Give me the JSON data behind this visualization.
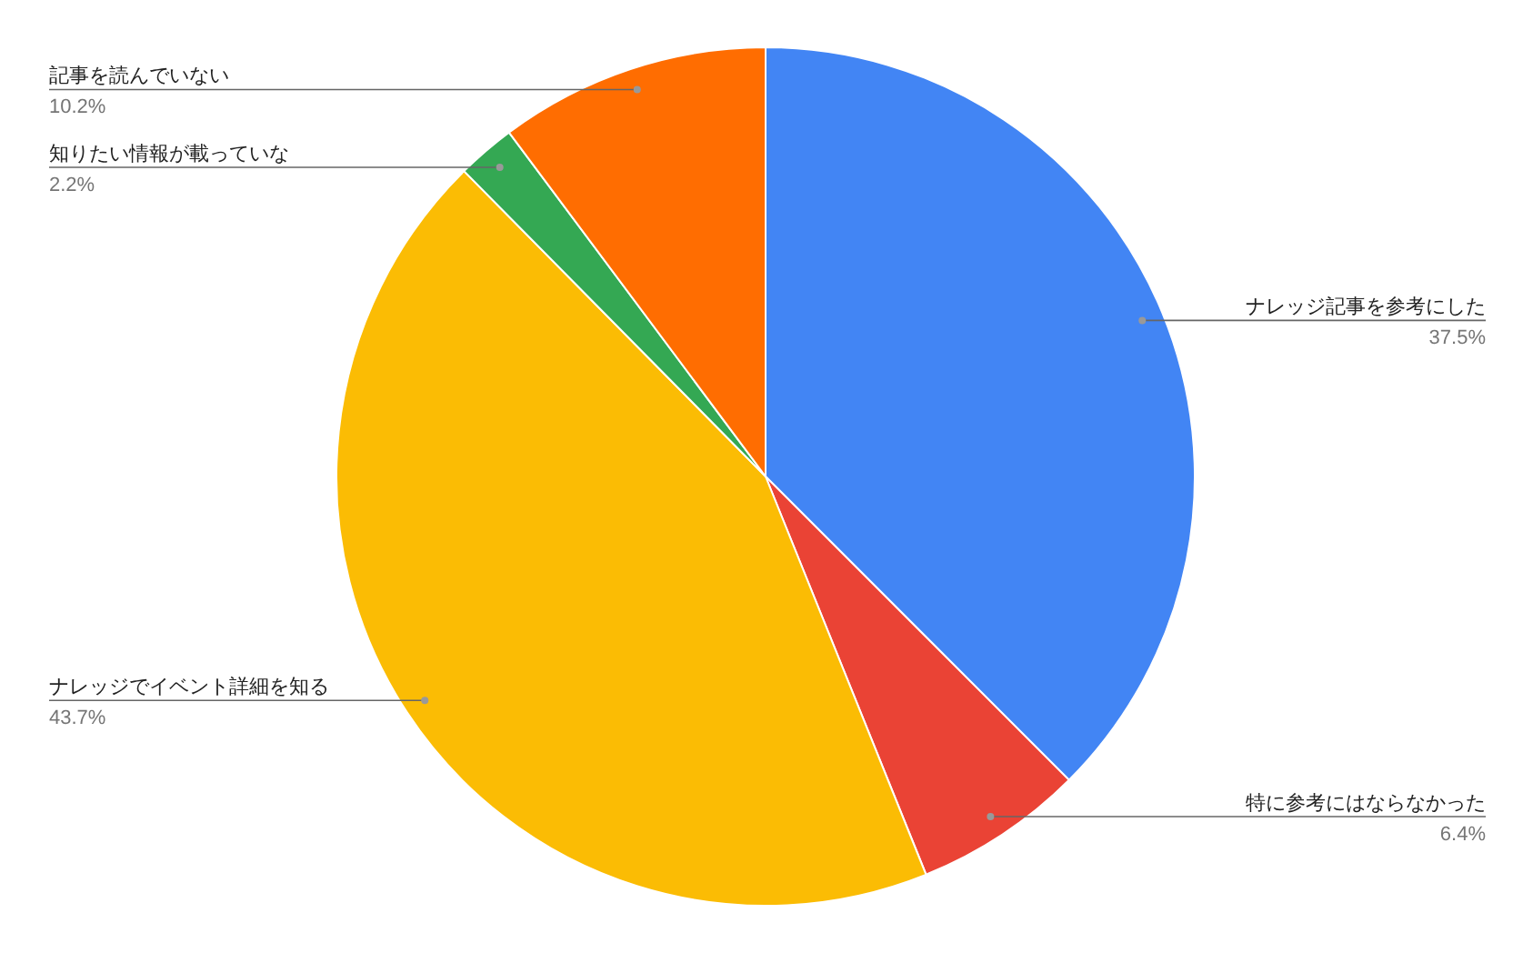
{
  "chart_data": {
    "type": "pie",
    "categories": [
      "ナレッジ記事を参考にした",
      "特に参考にはならなかった",
      "ナレッジでイベント詳細を知る",
      "知りたい情報が載っていな",
      "記事を読んでいない"
    ],
    "values": [
      37.5,
      6.4,
      43.7,
      2.2,
      10.2
    ],
    "colors": [
      "#4285f4",
      "#ea4335",
      "#fbbc04",
      "#34a853",
      "#ff6d01"
    ],
    "value_labels": [
      "37.5%",
      "6.4%",
      "43.7%",
      "2.2%",
      "10.2%"
    ]
  }
}
